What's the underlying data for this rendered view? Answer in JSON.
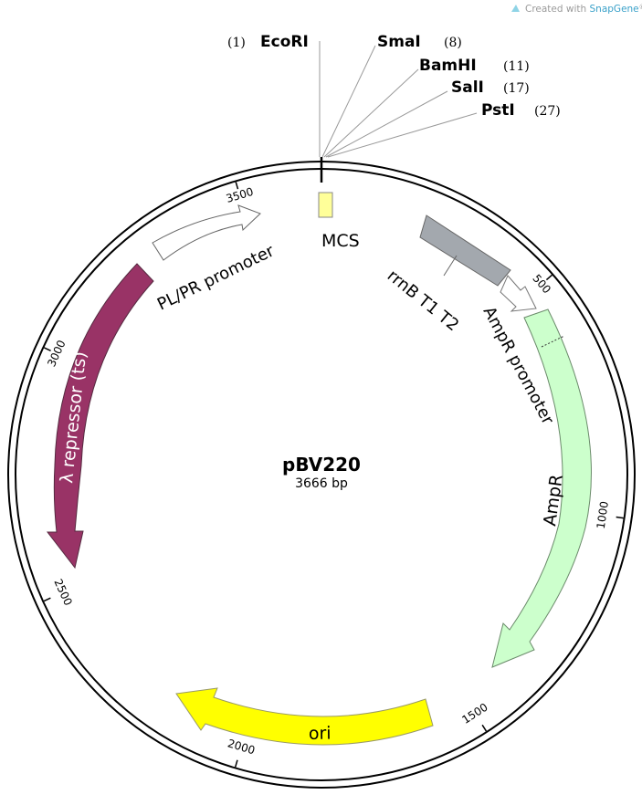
{
  "watermark": {
    "prefix": "Created with ",
    "brand": "SnapGene",
    "suffix": "®"
  },
  "plasmid": {
    "name": "pBV220",
    "size_label": "3666 bp",
    "length_bp": 3666
  },
  "sites": [
    {
      "name": "EcoRI",
      "pos": 1
    },
    {
      "name": "SmaI",
      "pos": 8
    },
    {
      "name": "BamHI",
      "pos": 11
    },
    {
      "name": "SalI",
      "pos": 17
    },
    {
      "name": "PstI",
      "pos": 27
    }
  ],
  "ticks": [
    "500",
    "1000",
    "1500",
    "2000",
    "2500",
    "3000",
    "3500"
  ],
  "features": {
    "mcs": {
      "label": "MCS",
      "color": "#ffff99"
    },
    "rrnb": {
      "label": "rrnB T1 T2",
      "color": "#a3a8ae"
    },
    "amp_promoter": {
      "label": "AmpR promoter",
      "color": "#ffffff"
    },
    "ampr": {
      "label": "AmpR",
      "color": "#ccffcc"
    },
    "ori": {
      "label": "ori",
      "color": "#ffff00"
    },
    "repressor": {
      "label": "λ repressor (ts)",
      "color": "#993366"
    },
    "plpr": {
      "label": "PL/PR promoter",
      "color": "#ffffff"
    }
  }
}
